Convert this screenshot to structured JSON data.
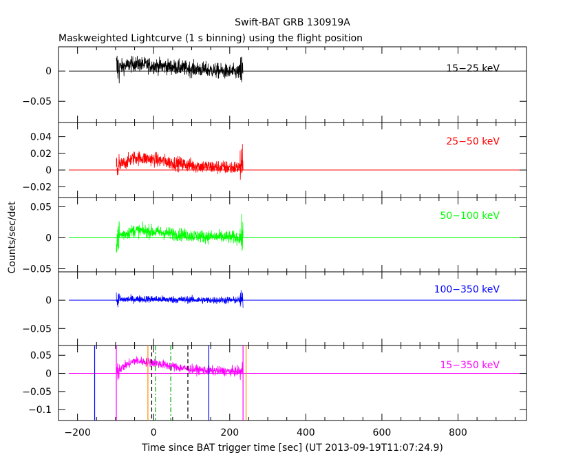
{
  "chart_data": {
    "type": "line",
    "title": "Swift-BAT GRB 130919A",
    "subtitle": "Maskweighted Lightcurve (1 s binning) using the flight position",
    "xlabel": "Time since BAT trigger time [sec] (UT 2013-09-19T11:07:24.9)",
    "ylabel": "Counts/sec/det",
    "xlim": [
      -250,
      980
    ],
    "x_ticks": [
      -200,
      0,
      200,
      400,
      600,
      800
    ],
    "x_tick_labels": [
      "−200",
      "0",
      "200",
      "400",
      "600",
      "800"
    ],
    "data_range": [
      -98,
      235
    ],
    "grid": false,
    "panels": [
      {
        "band": "15−25 keV",
        "color": "#000000",
        "ylim": [
          -0.085,
          0.04
        ],
        "yticks": [
          0,
          -0.05
        ],
        "ytick_labels": [
          "0",
          "−0.05"
        ],
        "noise": 0.012,
        "bump": 0.004,
        "values": [
          0.005,
          0.012,
          0.009,
          0.007,
          0.004,
          0.002,
          -0.001,
          -0.002
        ]
      },
      {
        "band": "25−50 keV",
        "color": "#ff0000",
        "ylim": [
          -0.033,
          0.057
        ],
        "yticks": [
          0.04,
          0.02,
          0,
          -0.02
        ],
        "ytick_labels": [
          "0.04",
          "0.02",
          "0",
          "−0.02"
        ],
        "noise": 0.008,
        "bump": 0.014,
        "values": [
          0.003,
          0.015,
          0.013,
          0.009,
          0.006,
          0.004,
          0.003,
          0.003
        ]
      },
      {
        "band": "50−100 keV",
        "color": "#00ff00",
        "ylim": [
          -0.055,
          0.065
        ],
        "yticks": [
          0.05,
          0,
          -0.05
        ],
        "ytick_labels": [
          "0.05",
          "0",
          "−0.05"
        ],
        "noise": 0.01,
        "bump": 0.012,
        "values": [
          0.002,
          0.012,
          0.01,
          0.007,
          0.004,
          0.002,
          0.001,
          0.0
        ]
      },
      {
        "band": "100−350 keV",
        "color": "#0000ff",
        "ylim": [
          -0.08,
          0.05
        ],
        "yticks": [
          0,
          -0.05
        ],
        "ytick_labels": [
          "0",
          "−0.05"
        ],
        "noise": 0.006,
        "bump": 0.002,
        "values": [
          0.001,
          0.002,
          0.002,
          0.001,
          0.001,
          0.0,
          0.0,
          0.0
        ]
      },
      {
        "band": "15−350 keV",
        "color": "#ff00ff",
        "ylim": [
          -0.13,
          0.077
        ],
        "yticks": [
          0.05,
          0,
          -0.05,
          -0.1
        ],
        "ytick_labels": [
          "0.05",
          "0",
          "−0.05",
          "−0.1"
        ],
        "noise": 0.012,
        "bump": 0.03,
        "values": [
          0.008,
          0.035,
          0.03,
          0.02,
          0.012,
          0.008,
          0.006,
          0.005
        ]
      }
    ],
    "vlines": [
      {
        "x": -155,
        "color": "#0000ff",
        "style": "solid"
      },
      {
        "x": -98,
        "color": "#ff00ff",
        "style": "solid"
      },
      {
        "x": -15,
        "color": "#ff8c00",
        "style": "solid"
      },
      {
        "x": -5,
        "color": "#000000",
        "style": "dashed"
      },
      {
        "x": 5,
        "color": "#00aa00",
        "style": "dashdot"
      },
      {
        "x": 45,
        "color": "#00aa00",
        "style": "dashdot"
      },
      {
        "x": 90,
        "color": "#000000",
        "style": "dashed"
      },
      {
        "x": 145,
        "color": "#0000ff",
        "style": "solid"
      },
      {
        "x": 235,
        "color": "#ff00ff",
        "style": "solid"
      },
      {
        "x": 243,
        "color": "#ff8c00",
        "style": "solid"
      }
    ]
  }
}
